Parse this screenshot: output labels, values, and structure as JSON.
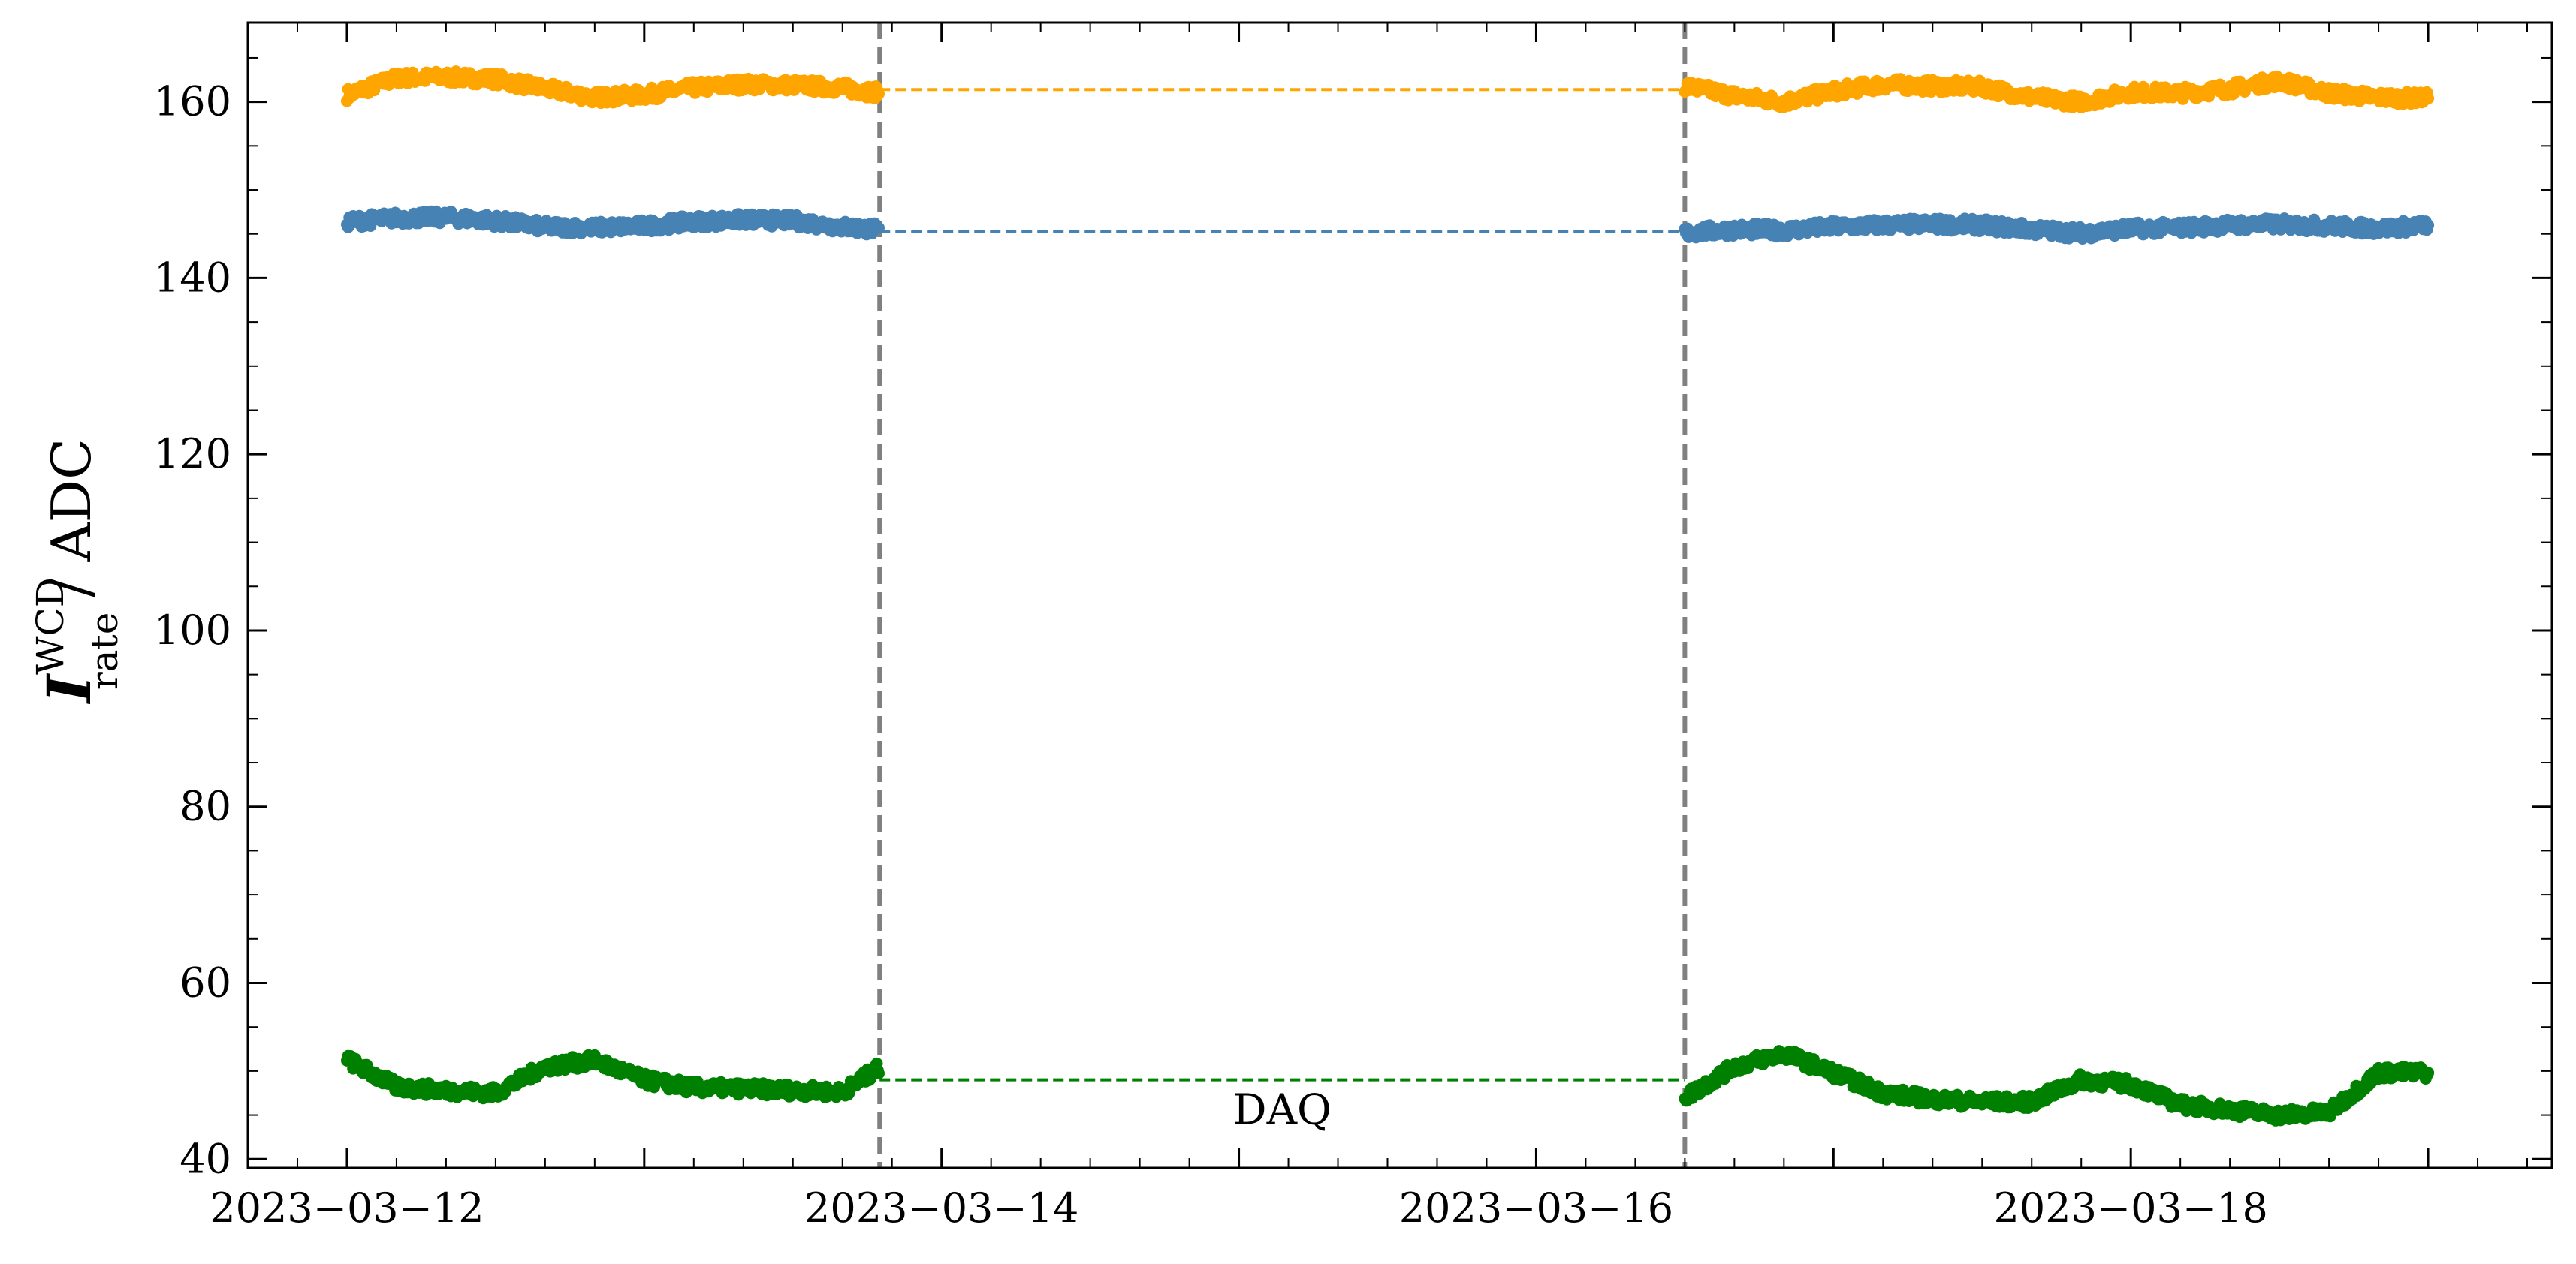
{
  "chart_data": {
    "type": "scatter",
    "title": "",
    "xlabel": "",
    "ylabel": {
      "symbol": "I",
      "superscript": "WCD",
      "subscript": "rate",
      "unit": "/ ADC"
    },
    "xlim": [
      "2023-03-11T16:00",
      "2023-03-19T10:00"
    ],
    "ylim": [
      39,
      169
    ],
    "x_ticks": [
      {
        "label": "2023−03−12",
        "date": "2023-03-12"
      },
      {
        "label": "2023−03−14",
        "date": "2023-03-14"
      },
      {
        "label": "2023−03−16",
        "date": "2023-03-16"
      },
      {
        "label": "2023−03−18",
        "date": "2023-03-18"
      }
    ],
    "x_minor_tick_dates": [
      "2023-03-13",
      "2023-03-15",
      "2023-03-17",
      "2023-03-19"
    ],
    "y_ticks": [
      40,
      60,
      80,
      100,
      120,
      140,
      160
    ],
    "grid": false,
    "legend": "none",
    "gap": {
      "start": "2023-03-13T19:00",
      "end": "2023-03-16T12:00",
      "label": "DAQ",
      "line_color": "#808080"
    },
    "series": [
      {
        "color": "#ffa500",
        "gap_level": 161.4,
        "x": [
          "2023-03-12T00:00",
          "2023-03-12T04:00",
          "2023-03-12T08:00",
          "2023-03-12T12:00",
          "2023-03-12T16:00",
          "2023-03-12T20:00",
          "2023-03-13T00:00",
          "2023-03-13T04:00",
          "2023-03-13T08:00",
          "2023-03-13T12:00",
          "2023-03-13T16:00",
          "2023-03-13T19:00",
          "2023-03-16T12:00",
          "2023-03-16T16:00",
          "2023-03-16T20:00",
          "2023-03-17T00:00",
          "2023-03-17T04:00",
          "2023-03-17T08:00",
          "2023-03-17T12:00",
          "2023-03-17T16:00",
          "2023-03-17T20:00",
          "2023-03-18T00:00",
          "2023-03-18T04:00",
          "2023-03-18T08:00",
          "2023-03-18T12:00",
          "2023-03-18T16:00",
          "2023-03-18T20:00",
          "2023-03-19T00:00"
        ],
        "y": [
          160.8,
          162.7,
          162.8,
          162.6,
          161.5,
          160.5,
          160.8,
          161.6,
          162.0,
          161.9,
          161.6,
          161.0,
          161.8,
          160.7,
          160.0,
          161.2,
          162.0,
          161.8,
          161.7,
          160.5,
          160.0,
          161.1,
          161.0,
          161.5,
          162.4,
          161.0,
          160.5,
          160.4
        ]
      },
      {
        "color": "#4682b4",
        "gap_level": 145.3,
        "x": [
          "2023-03-12T00:00",
          "2023-03-12T04:00",
          "2023-03-12T08:00",
          "2023-03-12T12:00",
          "2023-03-12T16:00",
          "2023-03-12T20:00",
          "2023-03-13T00:00",
          "2023-03-13T04:00",
          "2023-03-13T08:00",
          "2023-03-13T12:00",
          "2023-03-13T16:00",
          "2023-03-13T19:00",
          "2023-03-16T12:00",
          "2023-03-16T16:00",
          "2023-03-16T20:00",
          "2023-03-17T00:00",
          "2023-03-17T04:00",
          "2023-03-17T08:00",
          "2023-03-17T12:00",
          "2023-03-17T16:00",
          "2023-03-17T20:00",
          "2023-03-18T00:00",
          "2023-03-18T04:00",
          "2023-03-18T08:00",
          "2023-03-18T12:00",
          "2023-03-18T16:00",
          "2023-03-18T20:00",
          "2023-03-19T00:00"
        ],
        "y": [
          146.4,
          146.8,
          146.9,
          146.5,
          145.8,
          145.7,
          145.9,
          146.4,
          146.6,
          146.5,
          145.8,
          145.5,
          145.1,
          145.5,
          145.4,
          145.8,
          146.0,
          146.1,
          146.0,
          145.5,
          145.1,
          145.6,
          145.7,
          146.0,
          146.1,
          145.9,
          145.6,
          146.0
        ]
      },
      {
        "color": "#008000",
        "gap_level": 49.0,
        "x": [
          "2023-03-12T00:00",
          "2023-03-12T04:00",
          "2023-03-12T08:00",
          "2023-03-12T12:00",
          "2023-03-12T16:00",
          "2023-03-12T20:00",
          "2023-03-13T00:00",
          "2023-03-13T04:00",
          "2023-03-13T08:00",
          "2023-03-13T12:00",
          "2023-03-13T16:00",
          "2023-03-13T19:00",
          "2023-03-16T12:00",
          "2023-03-16T16:00",
          "2023-03-16T20:00",
          "2023-03-17T00:00",
          "2023-03-17T04:00",
          "2023-03-17T08:00",
          "2023-03-17T12:00",
          "2023-03-17T16:00",
          "2023-03-17T20:00",
          "2023-03-18T00:00",
          "2023-03-18T04:00",
          "2023-03-18T08:00",
          "2023-03-18T12:00",
          "2023-03-18T16:00",
          "2023-03-18T20:00",
          "2023-03-19T00:00"
        ],
        "y": [
          51.3,
          48.2,
          47.8,
          47.5,
          50.5,
          51.2,
          49.0,
          48.1,
          48.0,
          47.8,
          47.6,
          50.4,
          47.0,
          50.5,
          52.0,
          49.8,
          47.5,
          46.8,
          46.5,
          46.5,
          49.0,
          48.5,
          46.2,
          45.6,
          45.0,
          45.3,
          49.8,
          49.8
        ]
      }
    ]
  }
}
